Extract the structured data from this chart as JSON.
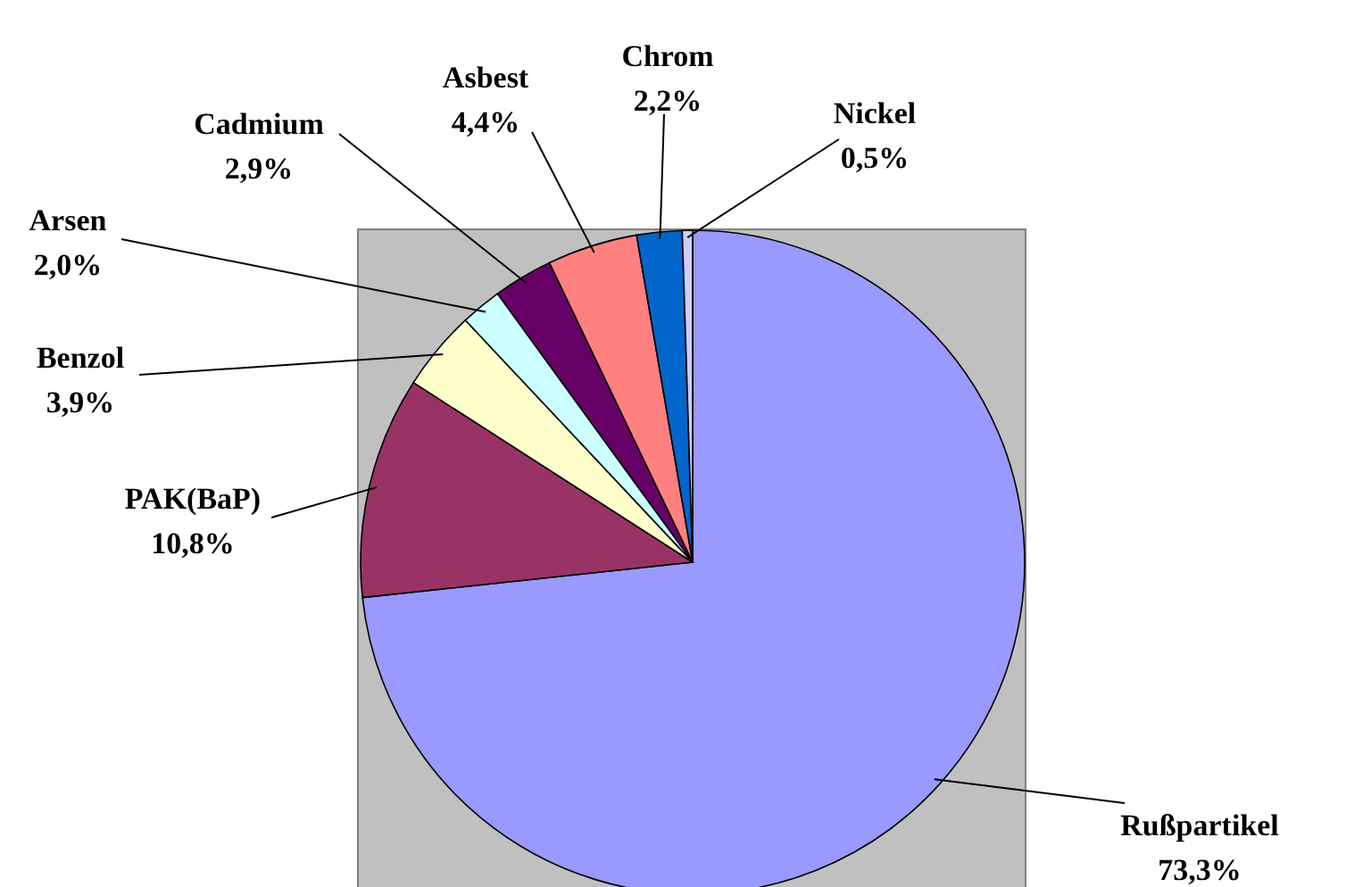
{
  "chart_data": {
    "type": "pie",
    "categories": [
      "Rußpartikel",
      "PAK(BaP)",
      "Benzol",
      "Arsen",
      "Cadmium",
      "Asbest",
      "Chrom",
      "Nickel"
    ],
    "values": [
      73.3,
      10.8,
      3.9,
      2.0,
      2.9,
      4.4,
      2.2,
      0.5
    ],
    "colors": [
      "#9999ff",
      "#993366",
      "#ffffcc",
      "#ccffff",
      "#660066",
      "#ff8080",
      "#0066cc",
      "#ccccff"
    ],
    "value_labels": [
      "73,3%",
      "10,8%",
      "3,9%",
      "2,0%",
      "2,9%",
      "4,4%",
      "2,2%",
      "0,5%"
    ]
  }
}
